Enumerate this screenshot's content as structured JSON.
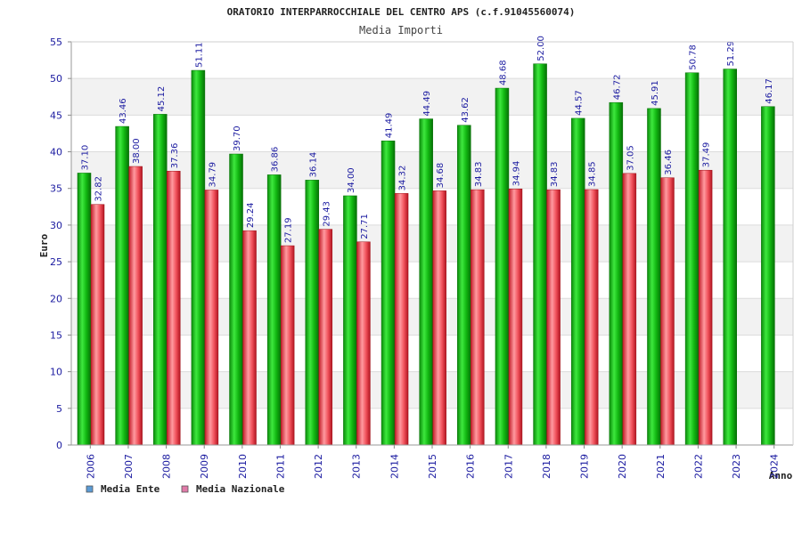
{
  "chart_data": {
    "type": "bar",
    "title": "ORATORIO INTERPARROCCHIALE DEL CENTRO APS (c.f.91045560074)",
    "subtitle": "Media Importi",
    "xlabel": "Anno",
    "ylabel": "Euro",
    "ylim": [
      0,
      55
    ],
    "yticks": [
      "0",
      "5",
      "10",
      "15",
      "20",
      "25",
      "30",
      "35",
      "40",
      "45",
      "50",
      "55"
    ],
    "grid": true,
    "legend_position": "bottom-left",
    "categories": [
      "2006",
      "2007",
      "2008",
      "2009",
      "2010",
      "2011",
      "2012",
      "2013",
      "2014",
      "2015",
      "2016",
      "2017",
      "2018",
      "2019",
      "2020",
      "2021",
      "2022",
      "2023",
      "2024"
    ],
    "series": [
      {
        "name": "Media Ente",
        "color": "#10b410",
        "legend_color": "#5b9bd5",
        "values": [
          37.1,
          43.46,
          45.12,
          51.11,
          39.7,
          36.86,
          36.14,
          34.0,
          41.49,
          44.49,
          43.62,
          48.68,
          52.0,
          44.57,
          46.72,
          45.91,
          50.78,
          51.29,
          46.17
        ],
        "labels": [
          "37.10",
          "43.46",
          "45.12",
          "51.11",
          "39.70",
          "36.86",
          "36.14",
          "34.00",
          "41.49",
          "44.49",
          "43.62",
          "48.68",
          "52.00",
          "44.57",
          "46.72",
          "45.91",
          "50.78",
          "51.29",
          "46.17"
        ]
      },
      {
        "name": "Media Nazionale",
        "color": "#e0303a",
        "legend_color": "#e07aa8",
        "values": [
          32.82,
          38.0,
          37.36,
          34.79,
          29.24,
          27.19,
          29.43,
          27.71,
          34.32,
          34.68,
          34.83,
          34.94,
          34.83,
          34.85,
          37.05,
          36.46,
          37.49,
          null,
          null
        ],
        "labels": [
          "32.82",
          "38.00",
          "37.36",
          "34.79",
          "29.24",
          "27.19",
          "29.43",
          "27.71",
          "34.32",
          "34.68",
          "34.83",
          "34.94",
          "34.83",
          "34.85",
          "37.05",
          "36.46",
          "37.49",
          "",
          ""
        ]
      }
    ]
  }
}
